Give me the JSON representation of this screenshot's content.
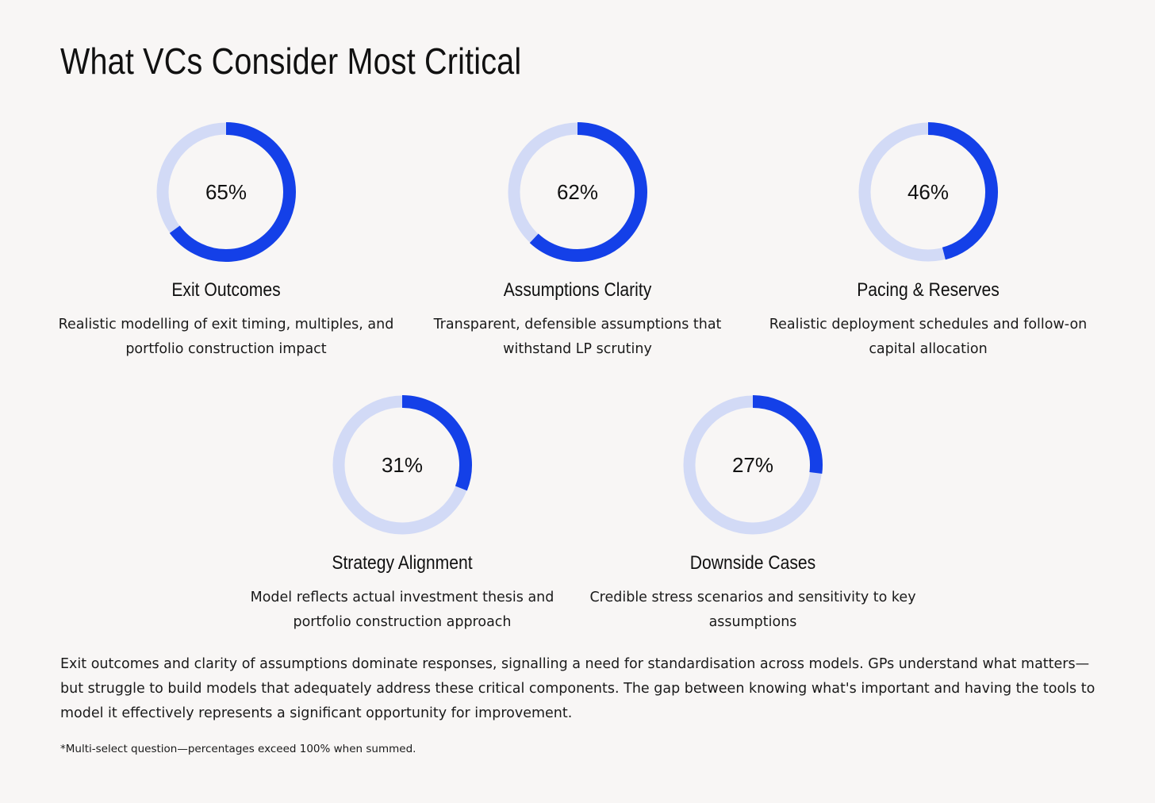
{
  "title": "What VCs Consider Most Critical",
  "chart_data": {
    "type": "donut",
    "title": "What VCs Consider Most Critical",
    "unit": "%",
    "max": 100,
    "colors": {
      "filled": "#1440e8",
      "track": "#d2daf6",
      "track_stroke": "#b9c3e6"
    },
    "items": [
      {
        "label": "Exit Outcomes",
        "value": 65,
        "value_label": "65%",
        "description": "Realistic modelling of exit timing, multiples, and portfolio construction impact"
      },
      {
        "label": "Assumptions Clarity",
        "value": 62,
        "value_label": "62%",
        "description": "Transparent, defensible assumptions that withstand LP scrutiny"
      },
      {
        "label": "Pacing & Reserves",
        "value": 46,
        "value_label": "46%",
        "description": "Realistic deployment schedules and follow-on capital allocation"
      },
      {
        "label": "Strategy Alignment",
        "value": 31,
        "value_label": "31%",
        "description": "Model reflects actual investment thesis and portfolio construction approach"
      },
      {
        "label": "Downside Cases",
        "value": 27,
        "value_label": "27%",
        "description": "Credible stress scenarios and sensitivity to key assumptions"
      }
    ]
  },
  "summary": "Exit outcomes and clarity of assumptions dominate responses, signalling a need for standardisation across models. GPs understand what matters—but struggle to build models that adequately address these critical components. The gap between knowing what's important and having the tools to model it effectively represents a significant opportunity for improvement.",
  "footnote": "*Multi-select question—percentages exceed 100% when summed."
}
